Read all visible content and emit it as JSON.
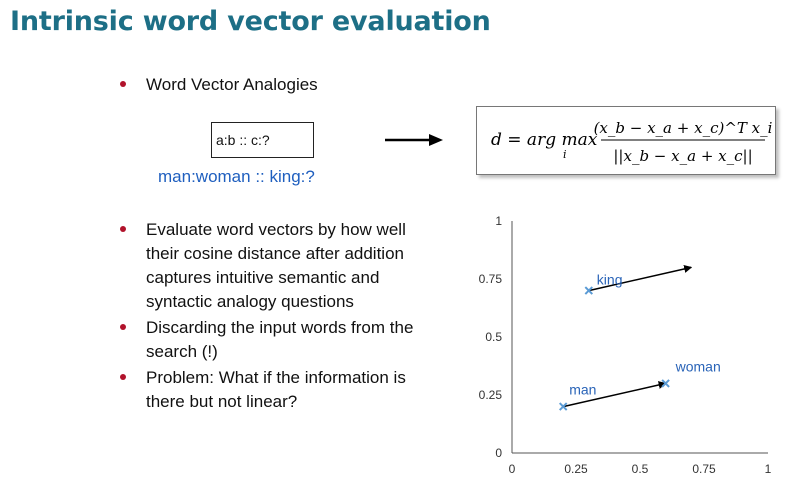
{
  "slide": {
    "title": "Intrinsic word vector evaluation",
    "bullet1": "Word Vector Analogies",
    "analogy_box": "a:b :: c:?",
    "example": "man:woman :: king:?",
    "bullets": [
      "Evaluate word vectors by how well their cosine distance after addition captures intuitive semantic and syntactic analogy questions",
      "Discarding the input words from the search (!)",
      "Problem: What if the information is there but not linear?"
    ],
    "bullet_lines": [
      [
        "Evaluate word vectors by how well",
        "their cosine distance after addition",
        "captures intuitive semantic and",
        "syntactic analogy questions"
      ],
      [
        "Discarding the input words from the",
        "search (!)"
      ],
      [
        "Problem: What if the information is",
        "there but not linear?"
      ]
    ]
  },
  "formula": {
    "lhs": "d = arg max",
    "argmax_sub": "i",
    "numerator": "(x_b − x_a + x_c)^T x_i",
    "denominator": "||x_b − x_a + x_c||"
  },
  "colors": {
    "title": "#1d6f86",
    "bullet": "#b1122b",
    "example": "#1f5fbf",
    "point_label": "#2a64b8",
    "point_marker": "#5b9bd5"
  },
  "chart_data": {
    "type": "scatter",
    "xlim": [
      0,
      1
    ],
    "ylim": [
      0,
      1
    ],
    "x_ticks": [
      0,
      0.25,
      0.5,
      0.75,
      1
    ],
    "y_ticks": [
      0,
      0.25,
      0.5,
      0.75,
      1
    ],
    "x_tick_labels": [
      "0",
      "0.25",
      "0.5",
      "0.75",
      "1"
    ],
    "y_tick_labels": [
      "0",
      "0.25",
      "0.5",
      "0.75",
      "1"
    ],
    "points": [
      {
        "label": "man",
        "x": 0.2,
        "y": 0.2
      },
      {
        "label": "woman",
        "x": 0.6,
        "y": 0.3
      },
      {
        "label": "king",
        "x": 0.3,
        "y": 0.7
      }
    ],
    "vectors": [
      {
        "from": [
          0.2,
          0.2
        ],
        "to": [
          0.6,
          0.3
        ]
      },
      {
        "from": [
          0.3,
          0.7
        ],
        "to": [
          0.7,
          0.8
        ]
      }
    ]
  }
}
